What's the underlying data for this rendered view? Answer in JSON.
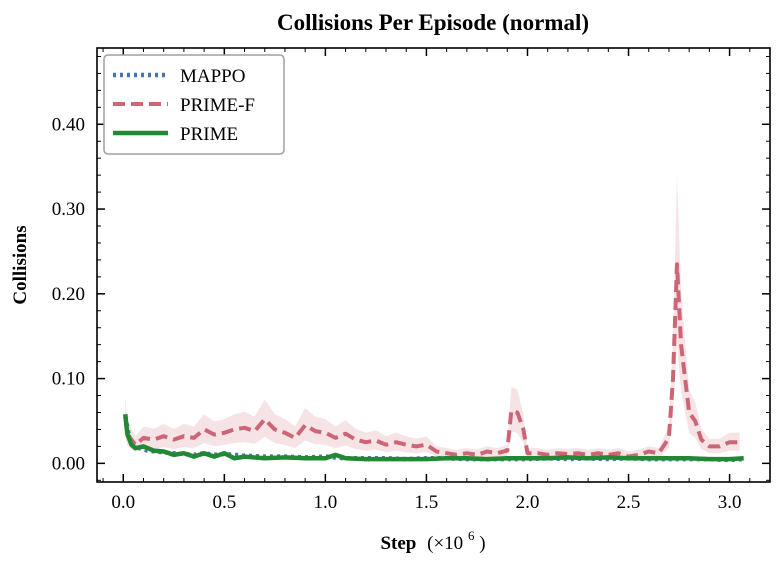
{
  "chart_data": {
    "type": "line",
    "title": "Collisions Per Episode (normal)",
    "xlabel": "Step",
    "xlabel_unit": "(×10",
    "xlabel_exp": "6",
    "xlabel_close": ")",
    "ylabel": "Collisions",
    "xlim": [
      -0.13,
      3.2
    ],
    "ylim": [
      -0.022,
      0.49
    ],
    "xticks": [
      0.0,
      0.5,
      1.0,
      1.5,
      2.0,
      2.5,
      3.0
    ],
    "xtick_labels": [
      "0.0",
      "0.5",
      "1.0",
      "1.5",
      "2.0",
      "2.5",
      "3.0"
    ],
    "yticks": [
      0.0,
      0.1,
      0.2,
      0.3,
      0.4
    ],
    "ytick_labels": [
      "0.00",
      "0.10",
      "0.20",
      "0.30",
      "0.40"
    ],
    "grid": false,
    "legend_position": "top-left",
    "series": [
      {
        "name": "MAPPO",
        "color": "#4477aa",
        "style": "dotted",
        "x": [
          0.01,
          0.03,
          0.05,
          0.08,
          0.12,
          0.16,
          0.2,
          0.25,
          0.3,
          0.35,
          0.4,
          0.45,
          0.5,
          0.6,
          0.7,
          0.8,
          0.9,
          1.0,
          1.1,
          1.2,
          1.3,
          1.4,
          1.5,
          1.6,
          1.7,
          1.8,
          1.9,
          2.0,
          2.1,
          2.2,
          2.3,
          2.4,
          2.5,
          2.6,
          2.7,
          2.8,
          2.9,
          3.0,
          3.07
        ],
        "y": [
          0.055,
          0.03,
          0.022,
          0.018,
          0.015,
          0.014,
          0.013,
          0.012,
          0.011,
          0.01,
          0.012,
          0.01,
          0.011,
          0.009,
          0.008,
          0.008,
          0.007,
          0.008,
          0.006,
          0.006,
          0.006,
          0.005,
          0.006,
          0.006,
          0.005,
          0.005,
          0.005,
          0.005,
          0.006,
          0.005,
          0.006,
          0.005,
          0.006,
          0.005,
          0.005,
          0.005,
          0.005,
          0.004,
          0.005
        ]
      },
      {
        "name": "PRIME-F",
        "color": "#cc6677",
        "style": "dashed",
        "x": [
          0.01,
          0.02,
          0.04,
          0.06,
          0.1,
          0.15,
          0.2,
          0.25,
          0.3,
          0.35,
          0.4,
          0.45,
          0.5,
          0.55,
          0.6,
          0.65,
          0.7,
          0.75,
          0.8,
          0.85,
          0.9,
          0.95,
          1.0,
          1.05,
          1.1,
          1.15,
          1.2,
          1.25,
          1.3,
          1.35,
          1.4,
          1.45,
          1.5,
          1.55,
          1.6,
          1.65,
          1.7,
          1.75,
          1.8,
          1.85,
          1.9,
          1.92,
          1.95,
          1.98,
          2.0,
          2.05,
          2.1,
          2.15,
          2.2,
          2.25,
          2.3,
          2.35,
          2.4,
          2.45,
          2.5,
          2.55,
          2.6,
          2.65,
          2.7,
          2.72,
          2.74,
          2.76,
          2.78,
          2.8,
          2.83,
          2.86,
          2.9,
          2.95,
          3.0,
          3.05
        ],
        "y": [
          0.055,
          0.035,
          0.028,
          0.022,
          0.03,
          0.028,
          0.032,
          0.028,
          0.032,
          0.03,
          0.04,
          0.034,
          0.036,
          0.04,
          0.042,
          0.038,
          0.052,
          0.04,
          0.036,
          0.03,
          0.045,
          0.038,
          0.036,
          0.03,
          0.035,
          0.028,
          0.025,
          0.027,
          0.022,
          0.025,
          0.022,
          0.02,
          0.022,
          0.014,
          0.012,
          0.01,
          0.012,
          0.01,
          0.014,
          0.012,
          0.015,
          0.062,
          0.06,
          0.04,
          0.012,
          0.012,
          0.01,
          0.012,
          0.011,
          0.012,
          0.01,
          0.012,
          0.01,
          0.012,
          0.008,
          0.01,
          0.014,
          0.012,
          0.03,
          0.1,
          0.235,
          0.14,
          0.1,
          0.06,
          0.05,
          0.028,
          0.02,
          0.02,
          0.025,
          0.025
        ]
      },
      {
        "name": "PRIME",
        "color": "#228833",
        "style": "solid",
        "x": [
          0.01,
          0.02,
          0.04,
          0.06,
          0.1,
          0.15,
          0.2,
          0.25,
          0.3,
          0.35,
          0.4,
          0.45,
          0.5,
          0.55,
          0.6,
          0.7,
          0.8,
          0.9,
          1.0,
          1.05,
          1.1,
          1.2,
          1.3,
          1.4,
          1.5,
          1.6,
          1.7,
          1.8,
          1.9,
          2.0,
          2.1,
          2.2,
          2.3,
          2.4,
          2.5,
          2.6,
          2.7,
          2.8,
          2.9,
          3.0,
          3.07
        ],
        "y": [
          0.058,
          0.035,
          0.022,
          0.018,
          0.02,
          0.015,
          0.014,
          0.01,
          0.012,
          0.008,
          0.012,
          0.008,
          0.012,
          0.006,
          0.008,
          0.006,
          0.007,
          0.006,
          0.006,
          0.01,
          0.006,
          0.005,
          0.005,
          0.005,
          0.005,
          0.006,
          0.006,
          0.005,
          0.006,
          0.006,
          0.006,
          0.007,
          0.006,
          0.007,
          0.006,
          0.006,
          0.006,
          0.006,
          0.005,
          0.005,
          0.006
        ]
      }
    ]
  }
}
